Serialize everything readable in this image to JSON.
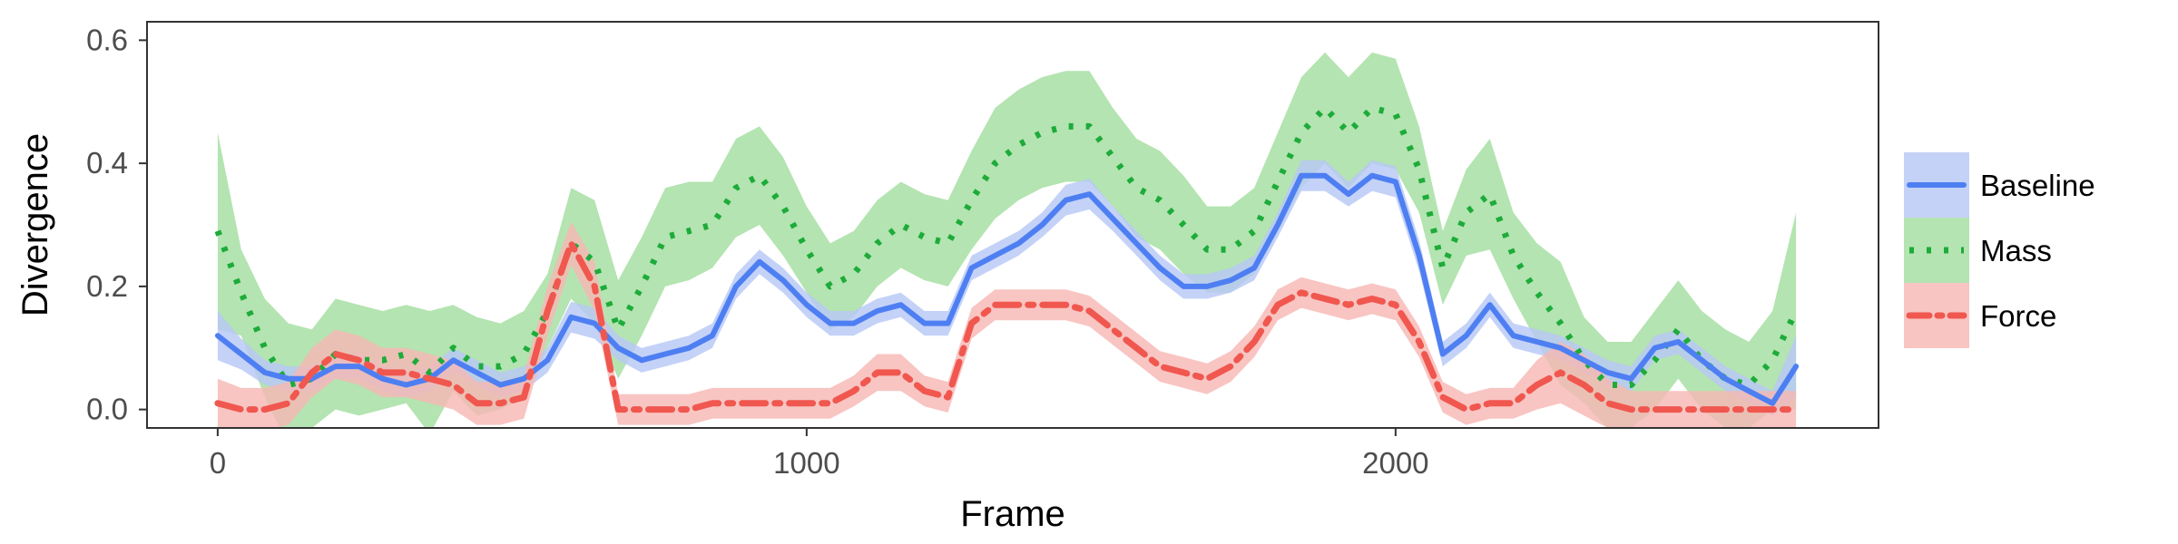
{
  "chart_data": {
    "type": "line",
    "xlabel": "Frame",
    "ylabel": "Divergence",
    "xlim": [
      -120,
      2820
    ],
    "ylim": [
      -0.03,
      0.63
    ],
    "xticks": [
      0,
      1000,
      2000
    ],
    "xtick_labels": [
      "0",
      "1000",
      "2000"
    ],
    "yticks": [
      0.0,
      0.2,
      0.4,
      0.6
    ],
    "ytick_labels": [
      "0.0",
      "0.2",
      "0.4",
      "0.6"
    ],
    "grid": false,
    "legend_position": "right",
    "x": [
      0,
      40,
      80,
      120,
      160,
      200,
      240,
      280,
      320,
      360,
      400,
      440,
      480,
      520,
      560,
      600,
      640,
      680,
      720,
      760,
      800,
      840,
      880,
      920,
      960,
      1000,
      1040,
      1080,
      1120,
      1160,
      1200,
      1240,
      1280,
      1320,
      1360,
      1400,
      1440,
      1480,
      1520,
      1560,
      1600,
      1640,
      1680,
      1720,
      1760,
      1800,
      1840,
      1880,
      1920,
      1960,
      2000,
      2040,
      2080,
      2120,
      2160,
      2200,
      2240,
      2280,
      2320,
      2360,
      2400,
      2440,
      2480,
      2520,
      2560,
      2600,
      2640,
      2680
    ],
    "series": [
      {
        "name": "Baseline",
        "color": "#4e7ff2",
        "band_color": "#b7c8f6",
        "dash": "solid",
        "values": [
          0.12,
          0.09,
          0.06,
          0.05,
          0.05,
          0.07,
          0.07,
          0.05,
          0.04,
          0.05,
          0.08,
          0.06,
          0.04,
          0.05,
          0.08,
          0.15,
          0.14,
          0.1,
          0.08,
          0.09,
          0.1,
          0.12,
          0.2,
          0.24,
          0.21,
          0.17,
          0.14,
          0.14,
          0.16,
          0.17,
          0.14,
          0.14,
          0.23,
          0.25,
          0.27,
          0.3,
          0.34,
          0.35,
          0.31,
          0.27,
          0.23,
          0.2,
          0.2,
          0.21,
          0.23,
          0.3,
          0.38,
          0.38,
          0.35,
          0.38,
          0.37,
          0.25,
          0.09,
          0.12,
          0.17,
          0.12,
          0.11,
          0.1,
          0.08,
          0.06,
          0.05,
          0.1,
          0.11,
          0.08,
          0.05,
          0.03,
          0.01,
          0.07
        ],
        "band": [
          0.04,
          0.025,
          0.02,
          0.02,
          0.02,
          0.02,
          0.02,
          0.02,
          0.02,
          0.02,
          0.02,
          0.02,
          0.02,
          0.02,
          0.02,
          0.025,
          0.025,
          0.02,
          0.02,
          0.02,
          0.02,
          0.02,
          0.02,
          0.02,
          0.02,
          0.02,
          0.02,
          0.02,
          0.02,
          0.02,
          0.02,
          0.02,
          0.02,
          0.02,
          0.02,
          0.02,
          0.025,
          0.025,
          0.02,
          0.02,
          0.02,
          0.02,
          0.02,
          0.02,
          0.02,
          0.02,
          0.025,
          0.025,
          0.02,
          0.025,
          0.025,
          0.025,
          0.02,
          0.02,
          0.02,
          0.02,
          0.02,
          0.02,
          0.02,
          0.02,
          0.02,
          0.02,
          0.02,
          0.02,
          0.02,
          0.02,
          0.02,
          0.05
        ]
      },
      {
        "name": "Mass",
        "color": "#1dab3a",
        "band_color": "#a3dea0",
        "dash": "dotted",
        "values": [
          0.29,
          0.19,
          0.1,
          0.04,
          0.05,
          0.09,
          0.08,
          0.08,
          0.09,
          0.06,
          0.1,
          0.07,
          0.07,
          0.09,
          0.16,
          0.27,
          0.24,
          0.13,
          0.2,
          0.28,
          0.29,
          0.3,
          0.36,
          0.38,
          0.33,
          0.26,
          0.2,
          0.22,
          0.27,
          0.3,
          0.28,
          0.27,
          0.34,
          0.4,
          0.43,
          0.45,
          0.46,
          0.46,
          0.41,
          0.36,
          0.34,
          0.3,
          0.26,
          0.26,
          0.29,
          0.37,
          0.45,
          0.49,
          0.45,
          0.49,
          0.48,
          0.39,
          0.23,
          0.32,
          0.35,
          0.25,
          0.19,
          0.14,
          0.08,
          0.04,
          0.04,
          0.08,
          0.13,
          0.08,
          0.05,
          0.04,
          0.08,
          0.16
        ],
        "band": [
          0.16,
          0.07,
          0.08,
          0.1,
          0.08,
          0.09,
          0.09,
          0.08,
          0.08,
          0.1,
          0.07,
          0.08,
          0.07,
          0.07,
          0.06,
          0.09,
          0.1,
          0.08,
          0.08,
          0.08,
          0.08,
          0.07,
          0.08,
          0.08,
          0.08,
          0.07,
          0.07,
          0.07,
          0.07,
          0.07,
          0.07,
          0.07,
          0.08,
          0.09,
          0.09,
          0.09,
          0.09,
          0.09,
          0.08,
          0.08,
          0.08,
          0.08,
          0.07,
          0.07,
          0.07,
          0.08,
          0.09,
          0.09,
          0.09,
          0.09,
          0.09,
          0.07,
          0.06,
          0.07,
          0.09,
          0.07,
          0.08,
          0.1,
          0.07,
          0.07,
          0.07,
          0.08,
          0.08,
          0.08,
          0.08,
          0.07,
          0.08,
          0.16
        ]
      },
      {
        "name": "Force",
        "color": "#f0574f",
        "band_color": "#f7b8b4",
        "dash": "dashdot",
        "values": [
          0.01,
          0.0,
          0.0,
          0.01,
          0.06,
          0.09,
          0.08,
          0.06,
          0.06,
          0.05,
          0.04,
          0.01,
          0.01,
          0.02,
          0.16,
          0.27,
          0.2,
          0.0,
          0.0,
          0.0,
          0.0,
          0.01,
          0.01,
          0.01,
          0.01,
          0.01,
          0.01,
          0.03,
          0.06,
          0.06,
          0.03,
          0.02,
          0.14,
          0.17,
          0.17,
          0.17,
          0.17,
          0.16,
          0.13,
          0.1,
          0.07,
          0.06,
          0.05,
          0.07,
          0.11,
          0.17,
          0.19,
          0.18,
          0.17,
          0.18,
          0.17,
          0.11,
          0.02,
          0.0,
          0.01,
          0.01,
          0.04,
          0.06,
          0.04,
          0.01,
          0.0,
          0.0,
          0.0,
          0.0,
          0.0,
          0.0,
          0.0,
          0.0
        ],
        "band": [
          0.04,
          0.035,
          0.035,
          0.035,
          0.04,
          0.04,
          0.04,
          0.04,
          0.04,
          0.04,
          0.04,
          0.035,
          0.035,
          0.035,
          0.04,
          0.035,
          0.04,
          0.025,
          0.025,
          0.025,
          0.025,
          0.025,
          0.025,
          0.025,
          0.025,
          0.025,
          0.025,
          0.025,
          0.03,
          0.03,
          0.025,
          0.025,
          0.025,
          0.025,
          0.025,
          0.025,
          0.025,
          0.025,
          0.025,
          0.025,
          0.025,
          0.025,
          0.025,
          0.025,
          0.025,
          0.025,
          0.025,
          0.025,
          0.025,
          0.025,
          0.025,
          0.025,
          0.025,
          0.025,
          0.025,
          0.025,
          0.04,
          0.05,
          0.05,
          0.04,
          0.03,
          0.03,
          0.03,
          0.03,
          0.03,
          0.03,
          0.03,
          0.03
        ]
      }
    ]
  }
}
